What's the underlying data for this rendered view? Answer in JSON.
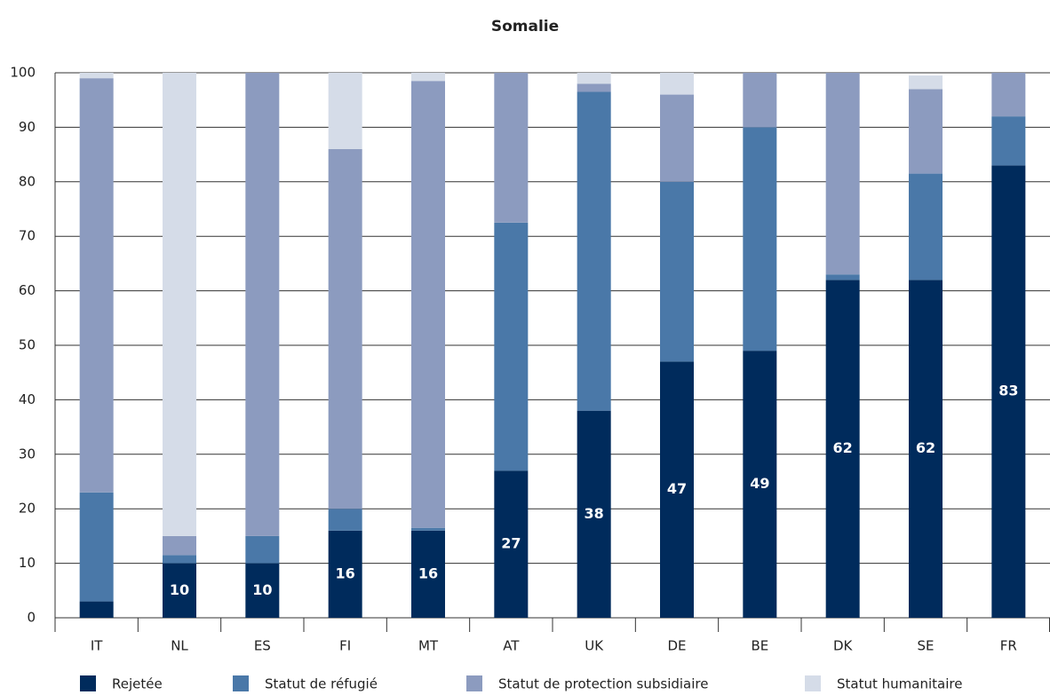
{
  "chart_data": {
    "type": "stacked_bar",
    "title": "Somalie",
    "categories": [
      "IT",
      "NL",
      "ES",
      "FI",
      "MT",
      "AT",
      "UK",
      "DE",
      "BE",
      "DK",
      "SE",
      "FR"
    ],
    "series": [
      {
        "name": "Rejetée",
        "color": "#002b5c",
        "values": [
          3,
          10,
          10,
          16,
          16,
          27,
          38,
          47,
          49,
          62,
          62,
          83
        ],
        "value_labels": [
          null,
          "10",
          "10",
          "16",
          "16",
          "27",
          "38",
          "47",
          "49",
          "62",
          "62",
          "83"
        ]
      },
      {
        "name": "Statut de réfugié",
        "color": "#4a78a8",
        "values": [
          20,
          1.5,
          5,
          4,
          0.5,
          45.5,
          58.5,
          33,
          41,
          1,
          19.5,
          9
        ]
      },
      {
        "name": "Statut de protection subsidiaire",
        "color": "#8c9bbf",
        "values": [
          76,
          3.5,
          85,
          66,
          82,
          27.5,
          1.5,
          16,
          10,
          37,
          15.5,
          8
        ]
      },
      {
        "name": "Statut humanitaire",
        "color": "#d5dce8",
        "values": [
          1,
          85,
          0,
          14,
          1.5,
          0,
          2,
          4,
          0,
          0,
          2.5,
          0
        ]
      }
    ],
    "ylim": [
      0,
      100
    ],
    "yticks": [
      0,
      10,
      20,
      30,
      40,
      50,
      60,
      70,
      80,
      90,
      100
    ],
    "grid": true
  }
}
